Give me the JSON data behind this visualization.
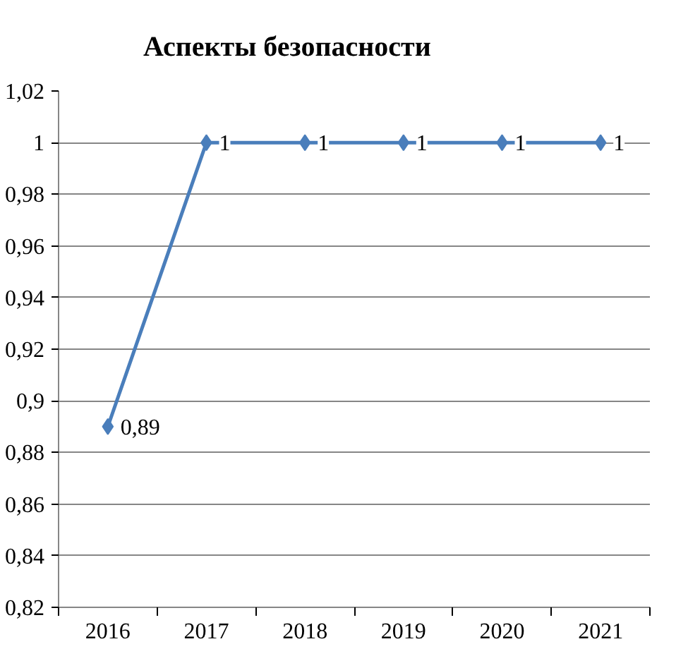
{
  "chart_data": {
    "type": "line",
    "title": "Аспекты безопасности",
    "categories": [
      "2016",
      "2017",
      "2018",
      "2019",
      "2020",
      "2021"
    ],
    "series": [
      {
        "color": "#4a7ebb",
        "values": [
          0.89,
          1,
          1,
          1,
          1,
          1
        ],
        "value_labels": [
          "0,89",
          "1",
          "1",
          "1",
          "1",
          "1"
        ]
      }
    ],
    "ylim": [
      0.82,
      1.02
    ],
    "yticks": [
      {
        "value": 0.82,
        "label": "0,82"
      },
      {
        "value": 0.84,
        "label": "0,84"
      },
      {
        "value": 0.86,
        "label": "0,86"
      },
      {
        "value": 0.88,
        "label": "0,88"
      },
      {
        "value": 0.9,
        "label": "0,9"
      },
      {
        "value": 0.92,
        "label": "0,92"
      },
      {
        "value": 0.94,
        "label": "0,94"
      },
      {
        "value": 0.96,
        "label": "0,96"
      },
      {
        "value": 0.98,
        "label": "0,98"
      },
      1,
      {
        "value": 1.02,
        "label": "1,02"
      }
    ],
    "grid": "y",
    "marker": "diamond",
    "line_style": "solid"
  }
}
